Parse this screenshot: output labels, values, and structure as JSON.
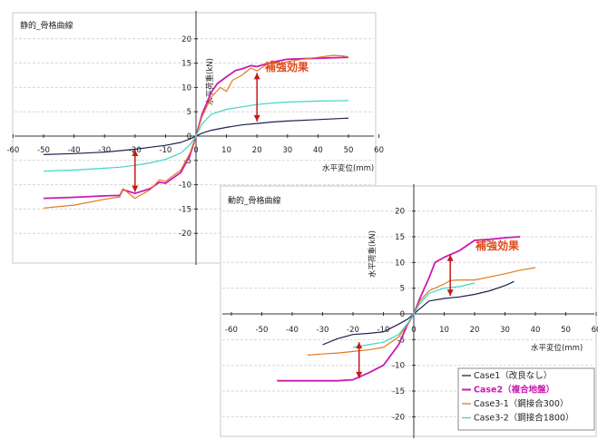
{
  "chart_data": [
    {
      "type": "line",
      "title": "静的_骨格曲線",
      "xlabel": "水平変位(mm)",
      "ylabel": "水平荷重(kN)",
      "xlim": [
        -60,
        60
      ],
      "ylim": [
        -20,
        20
      ],
      "xticks": [
        "-60",
        "-50",
        "-40",
        "-30",
        "-20",
        "-10",
        "0",
        "10",
        "20",
        "30",
        "40",
        "50",
        "60"
      ],
      "yticks": [
        "-20",
        "-15",
        "-10",
        "-5",
        "0",
        "5",
        "10",
        "15",
        "20"
      ],
      "grid": true,
      "annotation": "補強効果",
      "colors": {
        "case1": "#1f1f55",
        "case2": "#cc1ab0",
        "case3_1": "#e07a20",
        "case3_2": "#3fd6c6",
        "arrow": "#c41a1a"
      },
      "series": [
        {
          "key": "case1",
          "values": [
            [
              -50,
              -3.8
            ],
            [
              -40,
              -3.6
            ],
            [
              -30,
              -3.3
            ],
            [
              -25,
              -3.0
            ],
            [
              -20,
              -2.7
            ],
            [
              -15,
              -2.3
            ],
            [
              -10,
              -1.9
            ],
            [
              -5,
              -1.3
            ],
            [
              -2,
              -0.6
            ],
            [
              0,
              0
            ],
            [
              2,
              0.6
            ],
            [
              5,
              1.2
            ],
            [
              10,
              1.8
            ],
            [
              15,
              2.3
            ],
            [
              20,
              2.6
            ],
            [
              25,
              2.9
            ],
            [
              30,
              3.1
            ],
            [
              40,
              3.4
            ],
            [
              50,
              3.7
            ]
          ]
        },
        {
          "key": "case2",
          "values": [
            [
              -50,
              -12.8
            ],
            [
              -40,
              -12.6
            ],
            [
              -30,
              -12.3
            ],
            [
              -25,
              -12.2
            ],
            [
              -24,
              -11.0
            ],
            [
              -20,
              -11.8
            ],
            [
              -15,
              -10.8
            ],
            [
              -12,
              -9.5
            ],
            [
              -10,
              -9.7
            ],
            [
              -5,
              -7.5
            ],
            [
              -2,
              -4.0
            ],
            [
              0,
              0
            ],
            [
              2,
              4.5
            ],
            [
              5,
              9.0
            ],
            [
              7,
              10.8
            ],
            [
              10,
              12.2
            ],
            [
              13,
              13.5
            ],
            [
              15,
              13.8
            ],
            [
              18,
              14.5
            ],
            [
              20,
              14.3
            ],
            [
              25,
              15.2
            ],
            [
              30,
              15.8
            ],
            [
              40,
              16.0
            ],
            [
              50,
              16.2
            ]
          ]
        },
        {
          "key": "case3_1",
          "values": [
            [
              -50,
              -14.8
            ],
            [
              -40,
              -14.2
            ],
            [
              -30,
              -13.0
            ],
            [
              -25,
              -12.5
            ],
            [
              -24,
              -10.8
            ],
            [
              -20,
              -12.8
            ],
            [
              -15,
              -11.0
            ],
            [
              -12,
              -9.0
            ],
            [
              -10,
              -9.3
            ],
            [
              -5,
              -7.0
            ],
            [
              -2,
              -3.5
            ],
            [
              0,
              0
            ],
            [
              2,
              4.0
            ],
            [
              5,
              8.0
            ],
            [
              8,
              10.0
            ],
            [
              10,
              9.2
            ],
            [
              12,
              11.5
            ],
            [
              15,
              12.5
            ],
            [
              18,
              14.0
            ],
            [
              20,
              13.4
            ],
            [
              25,
              15.5
            ],
            [
              27,
              14.8
            ],
            [
              30,
              15.3
            ],
            [
              35,
              15.8
            ],
            [
              40,
              16.2
            ],
            [
              45,
              16.6
            ],
            [
              48,
              16.5
            ],
            [
              50,
              16.3
            ]
          ]
        },
        {
          "key": "case3_2",
          "values": [
            [
              -50,
              -7.2
            ],
            [
              -40,
              -7.0
            ],
            [
              -30,
              -6.6
            ],
            [
              -25,
              -6.4
            ],
            [
              -20,
              -6.0
            ],
            [
              -15,
              -5.5
            ],
            [
              -10,
              -4.8
            ],
            [
              -5,
              -3.5
            ],
            [
              -2,
              -1.8
            ],
            [
              0,
              0
            ],
            [
              2,
              2.5
            ],
            [
              5,
              4.5
            ],
            [
              10,
              5.5
            ],
            [
              15,
              6.0
            ],
            [
              20,
              6.5
            ],
            [
              25,
              6.8
            ],
            [
              30,
              7.0
            ],
            [
              40,
              7.2
            ],
            [
              50,
              7.3
            ]
          ]
        }
      ],
      "arrows": [
        [
          20,
          13.0,
          20,
          3.0
        ],
        [
          -20,
          -2.8,
          -20,
          -11.5
        ]
      ]
    },
    {
      "type": "line",
      "title": "動的_骨格曲線",
      "xlabel": "水平変位(mm)",
      "ylabel": "水平荷重(kN)",
      "xlim": [
        -60,
        60
      ],
      "ylim": [
        -20,
        20
      ],
      "xticks": [
        "-60",
        "-50",
        "-40",
        "-30",
        "-20",
        "-10",
        "0",
        "10",
        "20",
        "30",
        "40",
        "50",
        "60"
      ],
      "yticks": [
        "-20",
        "-15",
        "-10",
        "-5",
        "0",
        "5",
        "10",
        "15",
        "20"
      ],
      "grid": true,
      "annotation": "補強効果",
      "legend_position": "bottom-right",
      "legend": [
        "Case1（改良なし）",
        "Case2（複合地盤）",
        "Case3-1（鋼接合300）",
        "Case3-2（鋼接合1800）"
      ],
      "colors": {
        "case1": "#1f1f55",
        "case2": "#cc1ab0",
        "case3_1": "#e07a20",
        "case3_2": "#3fd6c6",
        "arrow": "#c41a1a"
      },
      "series": [
        {
          "key": "case1",
          "values": [
            [
              -30,
              -6.0
            ],
            [
              -25,
              -4.8
            ],
            [
              -20,
              -4.0
            ],
            [
              -15,
              -3.8
            ],
            [
              -10,
              -3.5
            ],
            [
              -5,
              -2.0
            ],
            [
              -2,
              -1.0
            ],
            [
              0,
              0
            ],
            [
              2,
              1.0
            ],
            [
              5,
              2.5
            ],
            [
              10,
              3.0
            ],
            [
              15,
              3.3
            ],
            [
              20,
              3.8
            ],
            [
              25,
              4.5
            ],
            [
              30,
              5.5
            ],
            [
              33,
              6.3
            ]
          ]
        },
        {
          "key": "case2",
          "values": [
            [
              -45,
              -13.0
            ],
            [
              -35,
              -13.0
            ],
            [
              -25,
              -13.0
            ],
            [
              -20,
              -12.8
            ],
            [
              -15,
              -11.5
            ],
            [
              -10,
              -10.0
            ],
            [
              -5,
              -6.0
            ],
            [
              -2,
              -2.0
            ],
            [
              0,
              0
            ],
            [
              2,
              3.0
            ],
            [
              5,
              7.0
            ],
            [
              7,
              10.0
            ],
            [
              10,
              11.0
            ],
            [
              15,
              12.3
            ],
            [
              20,
              14.3
            ],
            [
              25,
              14.5
            ],
            [
              30,
              14.8
            ],
            [
              35,
              15.0
            ]
          ]
        },
        {
          "key": "case3_1",
          "values": [
            [
              -35,
              -8.0
            ],
            [
              -30,
              -7.8
            ],
            [
              -25,
              -7.6
            ],
            [
              -20,
              -7.3
            ],
            [
              -15,
              -7.0
            ],
            [
              -10,
              -6.5
            ],
            [
              -5,
              -4.5
            ],
            [
              -2,
              -2.0
            ],
            [
              0,
              0
            ],
            [
              2,
              2.5
            ],
            [
              5,
              4.5
            ],
            [
              10,
              5.8
            ],
            [
              12,
              6.5
            ],
            [
              15,
              6.6
            ],
            [
              20,
              6.6
            ],
            [
              25,
              7.2
            ],
            [
              30,
              7.8
            ],
            [
              35,
              8.5
            ],
            [
              40,
              9.0
            ]
          ]
        },
        {
          "key": "case3_2",
          "values": [
            [
              -20,
              -6.5
            ],
            [
              -15,
              -6.0
            ],
            [
              -10,
              -5.5
            ],
            [
              -5,
              -4.0
            ],
            [
              -2,
              -1.8
            ],
            [
              0,
              0
            ],
            [
              2,
              2.0
            ],
            [
              5,
              4.0
            ],
            [
              10,
              5.0
            ],
            [
              15,
              5.3
            ],
            [
              20,
              6.0
            ]
          ]
        }
      ],
      "arrows": [
        [
          12,
          11.5,
          12,
          3.5
        ],
        [
          -18,
          -5.5,
          -18,
          -12.5
        ]
      ]
    }
  ]
}
